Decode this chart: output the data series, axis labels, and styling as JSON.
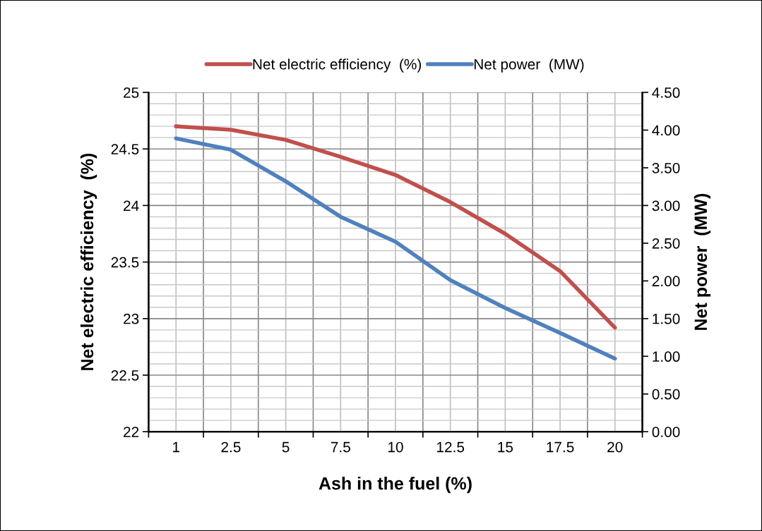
{
  "chart_data": {
    "type": "line",
    "xlabel": "Ash in the fuel (%)",
    "ylabel": "Net electric efficiency  (%)",
    "y2label": "Net power  (MW)",
    "categories": [
      "1",
      "2.5",
      "5",
      "7.5",
      "10",
      "12.5",
      "15",
      "17.5",
      "20"
    ],
    "series": [
      {
        "name": "Net electric efficiency  (%)",
        "color": "#c0504d",
        "values": [
          24.7,
          24.67,
          24.58,
          24.43,
          24.27,
          24.03,
          23.75,
          23.42,
          22.92
        ]
      },
      {
        "name": "Net power  (MW)",
        "color": "#4f81bd",
        "axis": "y2",
        "values": [
          3.89,
          3.74,
          3.32,
          2.85,
          2.52,
          2.01,
          1.64,
          1.31,
          0.97
        ]
      }
    ],
    "ylim": [
      22,
      25
    ],
    "yticks": [
      22,
      22.5,
      23,
      23.5,
      24,
      24.5,
      25
    ],
    "y2lim": [
      0,
      4.5
    ],
    "y2ticks": [
      {
        "value": 0,
        "label": "0.00"
      },
      {
        "value": 0.5,
        "label": "0.50"
      },
      {
        "value": 1,
        "label": "1.00"
      },
      {
        "value": 1.5,
        "label": "1.50"
      },
      {
        "value": 2,
        "label": "2.00"
      },
      {
        "value": 2.5,
        "label": "2.50"
      },
      {
        "value": 3,
        "label": "3.00"
      },
      {
        "value": 3.5,
        "label": "3.50"
      },
      {
        "value": 4,
        "label": "4.00"
      },
      {
        "value": 4.5,
        "label": "4.50"
      }
    ],
    "grid": true,
    "legend": "top",
    "marker": "none",
    "line_style": "solid"
  }
}
